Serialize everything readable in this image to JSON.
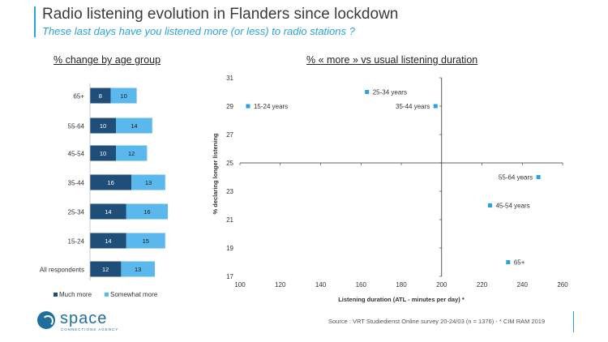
{
  "header": {
    "title": "Radio listening evolution in Flanders since lockdown",
    "subtitle": "These last days have you listened more (or less) to radio stations ?"
  },
  "footer": {
    "source": "Source : VRT  Studiedienst Online survey 20-24/03 (n = 1376) - * CIM RAM 2019",
    "logo_word": "space",
    "logo_tag": "CONNECTIONS AGENCY"
  },
  "colors": {
    "accent": "#2aa3d8",
    "much_more": "#1f4e79",
    "somewhat_more": "#5bb8ec",
    "point": "#29a3e0"
  },
  "chart_data": [
    {
      "type": "bar",
      "stacked": true,
      "orientation": "horizontal",
      "title": "% change by age group",
      "categories": [
        "65+",
        "55-64",
        "45-54",
        "35-44",
        "25-34",
        "15-24",
        "All respondents"
      ],
      "series": [
        {
          "name": "Much more",
          "values": [
            8,
            10,
            10,
            16,
            14,
            14,
            12
          ]
        },
        {
          "name": "Somewhat more",
          "values": [
            10,
            14,
            12,
            13,
            16,
            15,
            13
          ]
        }
      ],
      "legend": "bottom"
    },
    {
      "type": "scatter",
      "title": "% « more » vs usual listening duration",
      "xlabel": "Listening duration (ATL - minutes per day) *",
      "ylabel": "% declaring longer listening",
      "xlim": [
        100,
        260
      ],
      "ylim": [
        17,
        31
      ],
      "xticks": [
        100,
        120,
        140,
        160,
        180,
        200,
        220,
        240,
        260
      ],
      "yticks": [
        17,
        19,
        21,
        23,
        25,
        27,
        29,
        31
      ],
      "reference_lines": {
        "x": 200,
        "y": 25
      },
      "points": [
        {
          "label": "15-24 years",
          "x": 104,
          "y": 29
        },
        {
          "label": "25-34 years",
          "x": 163,
          "y": 30
        },
        {
          "label": "35-44 years",
          "x": 197,
          "y": 29
        },
        {
          "label": "55-64 years",
          "x": 248,
          "y": 24
        },
        {
          "label": "45-54 years",
          "x": 224,
          "y": 22
        },
        {
          "label": "65+",
          "x": 233,
          "y": 18
        }
      ]
    }
  ]
}
